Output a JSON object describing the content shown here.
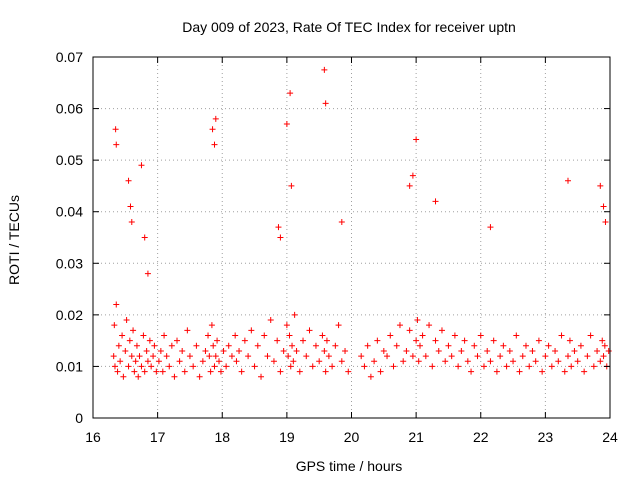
{
  "chart_data": {
    "type": "scatter",
    "title": "Day 009 of 2023, Rate Of TEC Index for receiver uptn",
    "xlabel": "GPS time / hours",
    "ylabel": "ROTI / TECUs",
    "xlim": [
      16,
      24
    ],
    "ylim": [
      0,
      0.07
    ],
    "xticks": [
      16,
      17,
      18,
      19,
      20,
      21,
      22,
      23,
      24
    ],
    "yticks": [
      0,
      0.01,
      0.02,
      0.03,
      0.04,
      0.05,
      0.06,
      0.07
    ],
    "ytick_labels": [
      "0",
      "0.01",
      "0.02",
      "0.03",
      "0.04",
      "0.05",
      "0.06",
      "0.07"
    ],
    "grid": true,
    "marker": "+",
    "color": "#ff0000",
    "series": [
      {
        "name": "ROTI",
        "x": [
          16.32,
          16.33,
          16.34,
          16.36,
          16.38,
          16.4,
          16.42,
          16.45,
          16.47,
          16.5,
          16.52,
          16.55,
          16.57,
          16.6,
          16.62,
          16.64,
          16.66,
          16.68,
          16.7,
          16.72,
          16.75,
          16.78,
          16.8,
          16.83,
          16.85,
          16.88,
          16.9,
          16.93,
          16.95,
          16.98,
          17.02,
          17.05,
          17.08,
          17.1,
          17.14,
          17.18,
          17.22,
          17.26,
          17.3,
          17.34,
          17.38,
          17.42,
          17.46,
          17.5,
          17.55,
          17.6,
          17.65,
          17.7,
          17.74,
          17.78,
          17.8,
          17.82,
          17.84,
          17.86,
          17.88,
          17.9,
          17.92,
          17.95,
          17.98,
          18.02,
          18.06,
          18.1,
          18.15,
          18.2,
          18.22,
          18.26,
          18.3,
          18.35,
          18.4,
          18.45,
          18.5,
          18.55,
          18.6,
          18.65,
          18.7,
          18.75,
          18.8,
          18.85,
          18.9,
          18.95,
          19.0,
          19.02,
          19.04,
          19.06,
          19.08,
          19.1,
          19.12,
          19.15,
          19.2,
          19.25,
          19.3,
          19.35,
          19.4,
          19.45,
          19.5,
          19.55,
          19.58,
          19.6,
          19.62,
          19.65,
          19.7,
          19.75,
          19.8,
          19.85,
          19.9,
          19.95,
          20.15,
          20.2,
          20.25,
          20.3,
          20.35,
          20.4,
          20.45,
          20.5,
          20.55,
          20.6,
          20.65,
          20.7,
          20.75,
          20.8,
          20.85,
          20.9,
          20.95,
          21.0,
          21.02,
          21.04,
          21.06,
          21.1,
          21.15,
          21.2,
          21.25,
          21.3,
          21.35,
          21.4,
          21.45,
          21.5,
          21.55,
          21.6,
          21.65,
          21.7,
          21.75,
          21.8,
          21.85,
          21.9,
          21.95,
          22.0,
          22.05,
          22.1,
          22.15,
          22.2,
          22.25,
          22.3,
          22.35,
          22.4,
          22.45,
          22.5,
          22.55,
          22.6,
          22.65,
          22.7,
          22.75,
          22.8,
          22.85,
          22.9,
          22.95,
          23.0,
          23.05,
          23.1,
          23.15,
          23.2,
          23.25,
          23.3,
          23.35,
          23.38,
          23.4,
          23.45,
          23.5,
          23.55,
          23.6,
          23.65,
          23.7,
          23.75,
          23.8,
          23.85,
          23.88,
          23.9,
          23.92,
          23.95,
          23.98,
          16.35,
          16.36,
          16.55,
          16.58,
          16.6,
          16.75,
          16.8,
          16.85,
          17.85,
          17.88,
          17.9,
          18.87,
          18.9,
          19.0,
          19.05,
          19.07,
          19.58,
          19.6,
          19.85,
          20.9,
          20.95,
          21.0,
          21.3,
          22.15,
          23.35,
          23.85,
          23.9,
          23.93
        ],
        "y": [
          0.012,
          0.018,
          0.01,
          0.022,
          0.009,
          0.014,
          0.011,
          0.016,
          0.008,
          0.013,
          0.019,
          0.01,
          0.015,
          0.012,
          0.017,
          0.009,
          0.011,
          0.014,
          0.008,
          0.012,
          0.01,
          0.016,
          0.009,
          0.013,
          0.011,
          0.015,
          0.01,
          0.012,
          0.014,
          0.009,
          0.011,
          0.013,
          0.009,
          0.016,
          0.012,
          0.01,
          0.014,
          0.008,
          0.015,
          0.011,
          0.013,
          0.009,
          0.017,
          0.012,
          0.01,
          0.014,
          0.008,
          0.011,
          0.013,
          0.016,
          0.012,
          0.009,
          0.018,
          0.014,
          0.01,
          0.012,
          0.015,
          0.011,
          0.009,
          0.013,
          0.01,
          0.014,
          0.012,
          0.016,
          0.011,
          0.013,
          0.009,
          0.015,
          0.012,
          0.017,
          0.01,
          0.014,
          0.008,
          0.016,
          0.012,
          0.019,
          0.011,
          0.015,
          0.009,
          0.013,
          0.018,
          0.012,
          0.016,
          0.01,
          0.014,
          0.011,
          0.02,
          0.013,
          0.009,
          0.015,
          0.012,
          0.017,
          0.01,
          0.014,
          0.011,
          0.016,
          0.013,
          0.009,
          0.015,
          0.012,
          0.01,
          0.014,
          0.018,
          0.011,
          0.013,
          0.009,
          0.012,
          0.01,
          0.014,
          0.008,
          0.011,
          0.015,
          0.009,
          0.013,
          0.012,
          0.016,
          0.01,
          0.014,
          0.018,
          0.011,
          0.013,
          0.017,
          0.012,
          0.015,
          0.019,
          0.011,
          0.014,
          0.016,
          0.012,
          0.018,
          0.01,
          0.015,
          0.013,
          0.017,
          0.011,
          0.014,
          0.012,
          0.016,
          0.01,
          0.013,
          0.015,
          0.011,
          0.009,
          0.014,
          0.012,
          0.016,
          0.01,
          0.013,
          0.011,
          0.015,
          0.009,
          0.012,
          0.014,
          0.01,
          0.013,
          0.011,
          0.016,
          0.009,
          0.012,
          0.014,
          0.01,
          0.013,
          0.011,
          0.015,
          0.009,
          0.012,
          0.014,
          0.01,
          0.013,
          0.011,
          0.016,
          0.009,
          0.012,
          0.015,
          0.01,
          0.013,
          0.011,
          0.014,
          0.009,
          0.012,
          0.016,
          0.01,
          0.013,
          0.011,
          0.015,
          0.012,
          0.014,
          0.01,
          0.013,
          0.056,
          0.053,
          0.046,
          0.041,
          0.038,
          0.049,
          0.035,
          0.028,
          0.056,
          0.053,
          0.058,
          0.037,
          0.035,
          0.057,
          0.063,
          0.045,
          0.0675,
          0.061,
          0.038,
          0.045,
          0.047,
          0.054,
          0.042,
          0.037,
          0.046,
          0.045,
          0.041,
          0.038
        ]
      }
    ]
  }
}
